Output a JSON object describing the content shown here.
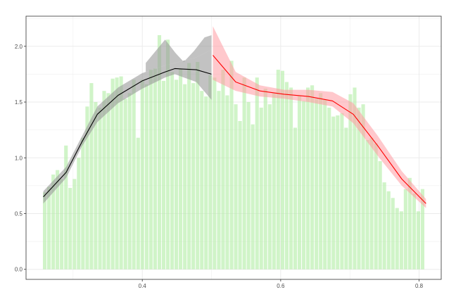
{
  "chart_data": {
    "type": "bar",
    "title": "",
    "xlabel": "",
    "ylabel": "",
    "xlim": [
      0.232,
      0.832
    ],
    "ylim": [
      -0.09,
      2.27
    ],
    "grid": true,
    "x_ticks": [
      0.4,
      0.6,
      0.8
    ],
    "x_tick_labels": [
      "0.4",
      "0.6",
      "0.8"
    ],
    "y_ticks": [
      0.0,
      0.5,
      1.0,
      1.5,
      2.0
    ],
    "y_tick_labels": [
      "0.0",
      "0.5",
      "1.0",
      "1.5",
      "2.0"
    ],
    "colors": {
      "bars": "#b7eeaa",
      "left_line": "#000000",
      "left_band": "#999999",
      "right_line": "#ff0000",
      "right_band": "#ff9aa2",
      "grid": "#ebebeb",
      "panel_border": "#333333"
    },
    "bar_width": 0.0052,
    "bars": {
      "x": [
        0.259,
        0.2651,
        0.2713,
        0.2774,
        0.2835,
        0.2897,
        0.2958,
        0.302,
        0.3081,
        0.3142,
        0.3204,
        0.3265,
        0.3326,
        0.3388,
        0.3449,
        0.351,
        0.3572,
        0.3633,
        0.3694,
        0.3756,
        0.3817,
        0.3878,
        0.394,
        0.4001,
        0.4063,
        0.4124,
        0.4185,
        0.4247,
        0.4308,
        0.4369,
        0.4431,
        0.4492,
        0.4553,
        0.4615,
        0.4676,
        0.4737,
        0.4799,
        0.486,
        0.4921,
        0.4983,
        0.5044,
        0.5106,
        0.5167,
        0.5228,
        0.529,
        0.5351,
        0.5412,
        0.5474,
        0.5535,
        0.5596,
        0.5658,
        0.5719,
        0.578,
        0.5842,
        0.5903,
        0.5964,
        0.6026,
        0.6087,
        0.6149,
        0.621,
        0.6271,
        0.6333,
        0.6394,
        0.6455,
        0.6517,
        0.6578,
        0.6639,
        0.6701,
        0.6762,
        0.6823,
        0.6885,
        0.6946,
        0.7007,
        0.7069,
        0.713,
        0.7192,
        0.7253,
        0.7314,
        0.7376,
        0.7437,
        0.7498,
        0.756,
        0.7621,
        0.7682,
        0.7744,
        0.7805,
        0.7866,
        0.7928,
        0.7989,
        0.805
      ],
      "values": [
        0.69,
        0.74,
        0.85,
        0.89,
        0.81,
        1.11,
        0.73,
        0.81,
        1.0,
        1.18,
        1.46,
        1.67,
        1.5,
        1.45,
        1.6,
        1.58,
        1.71,
        1.72,
        1.73,
        1.53,
        1.58,
        1.7,
        1.18,
        1.7,
        1.66,
        1.79,
        1.8,
        2.1,
        1.69,
        2.06,
        1.77,
        1.7,
        1.8,
        1.66,
        1.85,
        1.67,
        1.86,
        1.6,
        1.55,
        1.74,
        1.72,
        1.6,
        1.79,
        1.56,
        1.87,
        1.48,
        1.33,
        1.72,
        1.5,
        1.3,
        1.72,
        1.45,
        1.62,
        1.48,
        1.58,
        1.79,
        1.78,
        1.68,
        1.63,
        1.27,
        1.56,
        1.51,
        1.63,
        1.65,
        1.53,
        1.58,
        1.52,
        1.45,
        1.37,
        1.38,
        1.4,
        1.27,
        1.57,
        1.63,
        1.45,
        1.48,
        1.16,
        1.18,
        1.13,
        0.97,
        0.78,
        0.7,
        0.64,
        0.55,
        0.52,
        0.72,
        0.82,
        0.68,
        0.52,
        0.72
      ]
    },
    "series": [
      {
        "type": "line",
        "x": [
          0.257,
          0.29,
          0.3125,
          0.335,
          0.365,
          0.4,
          0.433,
          0.447,
          0.478,
          0.5
        ],
        "y": [
          0.65,
          0.87,
          1.14,
          1.39,
          1.56,
          1.69,
          1.77,
          1.8,
          1.79,
          1.75
        ],
        "band_lower": [
          0.59,
          0.82,
          1.1,
          1.32,
          1.49,
          1.62,
          1.72,
          1.75,
          1.68,
          1.52
        ],
        "band_upper": [
          0.7,
          0.92,
          1.19,
          1.46,
          1.63,
          1.76,
          1.83,
          1.85,
          1.9,
          1.97
        ],
        "band_upper_extra": [
          [
            0.405,
            1.85
          ],
          [
            0.433,
            2.06
          ],
          [
            0.448,
            1.94
          ],
          [
            0.46,
            1.86
          ],
          [
            0.475,
            1.96
          ],
          [
            0.49,
            2.08
          ],
          [
            0.5,
            2.1
          ]
        ]
      },
      {
        "type": "line",
        "x": [
          0.502,
          0.535,
          0.57,
          0.605,
          0.64,
          0.675,
          0.705,
          0.74,
          0.775,
          0.81
        ],
        "y": [
          1.92,
          1.68,
          1.6,
          1.57,
          1.55,
          1.51,
          1.39,
          1.11,
          0.81,
          0.59
        ],
        "band_lower": [
          1.7,
          1.6,
          1.55,
          1.53,
          1.5,
          1.46,
          1.31,
          1.02,
          0.75,
          0.55
        ],
        "band_upper": [
          2.18,
          1.77,
          1.65,
          1.61,
          1.61,
          1.59,
          1.49,
          1.2,
          0.88,
          0.63
        ]
      }
    ]
  }
}
